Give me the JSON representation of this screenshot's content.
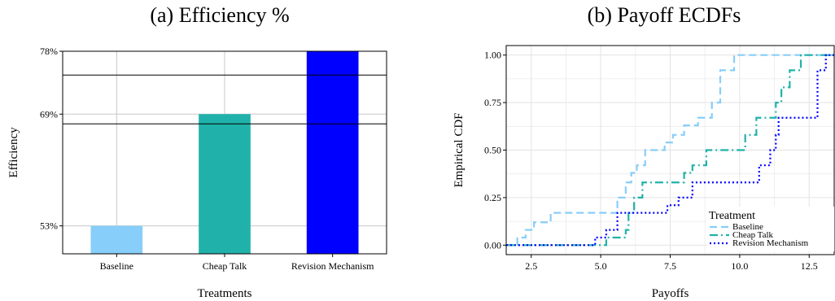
{
  "panel_titles": {
    "a": "(a) Efficiency %",
    "b": "(b) Payoff ECDFs"
  },
  "colors": {
    "baseline": "#87CEFA",
    "cheap_talk": "#20B2AA",
    "revision": "#0000FF",
    "grid": "#C8C8C8",
    "grid_minor": "#EBEBEB"
  },
  "chart_data": [
    {
      "type": "bar",
      "title": "(a) Efficiency %",
      "xlabel": "Treatments",
      "ylabel": "Efficiency",
      "categories": [
        "Baseline",
        "Cheap Talk",
        "Revision Mechanism"
      ],
      "values": [
        53,
        69,
        78
      ],
      "value_labels": [
        "53%",
        "69%",
        "78%"
      ],
      "ylim": [
        49,
        78
      ],
      "yticks": [
        53,
        69,
        78
      ],
      "yticklabels": [
        "53%",
        "69%",
        "78%"
      ],
      "reference_lines": [
        67.6,
        74.6
      ],
      "colors": [
        "#87CEFA",
        "#20B2AA",
        "#0000FF"
      ],
      "grid": true
    },
    {
      "type": "line",
      "title": "(b) Payoff ECDFs",
      "xlabel": "Payoffs",
      "ylabel": "Empirical CDF",
      "xlim": [
        1.6,
        13.4
      ],
      "ylim": [
        -0.05,
        1.05
      ],
      "xticks": [
        2.5,
        5.0,
        7.5,
        10.0,
        12.5
      ],
      "xticklabels": [
        "2.5",
        "5.0",
        "7.5",
        "10.0",
        "12.5"
      ],
      "yticks": [
        0.0,
        0.25,
        0.5,
        0.75,
        1.0
      ],
      "yticklabels": [
        "0.00",
        "0.25",
        "0.50",
        "0.75",
        "1.00"
      ],
      "grid": true,
      "legend": {
        "title": "Treatment",
        "position": "bottom-right"
      },
      "series": [
        {
          "name": "Baseline",
          "color": "#87CEFA",
          "dash": "9,5",
          "x": [
            2.0,
            2.3,
            2.6,
            3.2,
            5.6,
            5.9,
            6.1,
            6.3,
            6.6,
            7.3,
            7.6,
            8.0,
            8.5,
            9.0,
            9.3,
            9.8
          ],
          "y": [
            0.04,
            0.08,
            0.12,
            0.17,
            0.25,
            0.33,
            0.38,
            0.42,
            0.5,
            0.54,
            0.58,
            0.63,
            0.67,
            0.75,
            0.92,
            1.0
          ]
        },
        {
          "name": "Cheap Talk",
          "color": "#20B2AA",
          "dash": "10,4,2,4",
          "x": [
            5.2,
            5.9,
            6.0,
            6.2,
            6.5,
            7.0,
            8.0,
            8.3,
            8.8,
            10.2,
            10.6,
            11.3,
            11.5,
            11.8,
            12.2
          ],
          "y": [
            0.04,
            0.08,
            0.17,
            0.25,
            0.33,
            0.33,
            0.38,
            0.42,
            0.5,
            0.58,
            0.67,
            0.75,
            0.83,
            0.92,
            1.0
          ]
        },
        {
          "name": "Revision Mechanism",
          "color": "#0000FF",
          "dash": "2,3",
          "x": [
            4.8,
            5.2,
            5.6,
            6.6,
            7.4,
            7.8,
            8.3,
            10.7,
            11.1,
            11.3,
            11.4,
            12.8,
            13.1
          ],
          "y": [
            0.04,
            0.08,
            0.17,
            0.17,
            0.21,
            0.25,
            0.33,
            0.42,
            0.5,
            0.58,
            0.67,
            0.92,
            1.0
          ]
        }
      ]
    }
  ]
}
